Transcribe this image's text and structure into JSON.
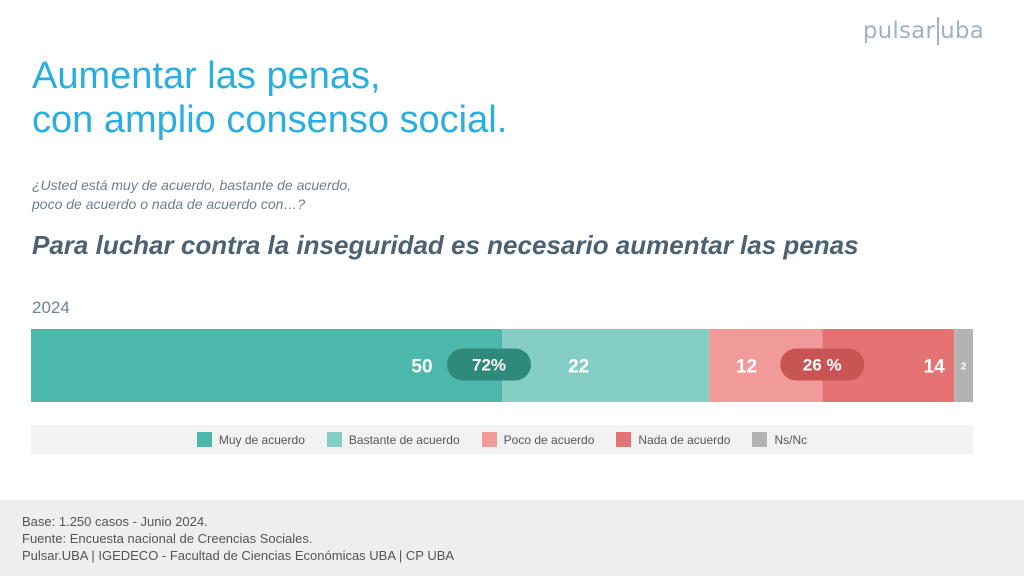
{
  "logo": {
    "left": "pulsar",
    "right": "uba"
  },
  "title": {
    "line1": "Aumentar las penas,",
    "line2": "con amplio consenso social."
  },
  "question": {
    "line1": "¿Usted está muy de acuerdo, bastante de acuerdo,",
    "line2": "poco de acuerdo o nada de acuerdo con…?"
  },
  "statement": "Para luchar contra la inseguridad es necesario aumentar las penas",
  "year": "2024",
  "colors": {
    "muy": "#4cb8ac",
    "bastante": "#84cdc5",
    "poco": "#f19a9a",
    "nada": "#e57373",
    "nsnc": "#b3b3b3",
    "agree_pill": "#2f8a7c",
    "disagree_pill": "#c95454"
  },
  "chart_data": {
    "type": "bar",
    "orientation": "horizontal-stacked",
    "categories": [
      "2024"
    ],
    "series": [
      {
        "name": "Muy de acuerdo",
        "key": "muy",
        "values": [
          50
        ]
      },
      {
        "name": "Bastante de acuerdo",
        "key": "bastante",
        "values": [
          22
        ]
      },
      {
        "name": "Poco de acuerdo",
        "key": "poco",
        "values": [
          12
        ]
      },
      {
        "name": "Nada de acuerdo",
        "key": "nada",
        "values": [
          14
        ]
      },
      {
        "name": "Ns/Nc",
        "key": "nsnc",
        "values": [
          2
        ]
      }
    ],
    "aggregates": [
      {
        "label": "72%",
        "value": 72,
        "group": "agree"
      },
      {
        "label": "26 %",
        "value": 26,
        "group": "disagree"
      }
    ],
    "xlim": [
      0,
      100
    ],
    "legend_position": "bottom"
  },
  "legend": [
    {
      "label": "Muy de acuerdo",
      "color_key": "muy"
    },
    {
      "label": "Bastante de acuerdo",
      "color_key": "bastante"
    },
    {
      "label": "Poco de acuerdo",
      "color_key": "poco"
    },
    {
      "label": "Nada de acuerdo",
      "color_key": "nada"
    },
    {
      "label": "Ns/Nc",
      "color_key": "nsnc"
    }
  ],
  "footer": {
    "line1": "Base: 1.250 casos - Junio 2024.",
    "line2": "Fuente: Encuesta nacional de Creencias Sociales.",
    "line3": "Pulsar.UBA | IGEDECO - Facultad de Ciencias Económicas UBA | CP UBA"
  }
}
